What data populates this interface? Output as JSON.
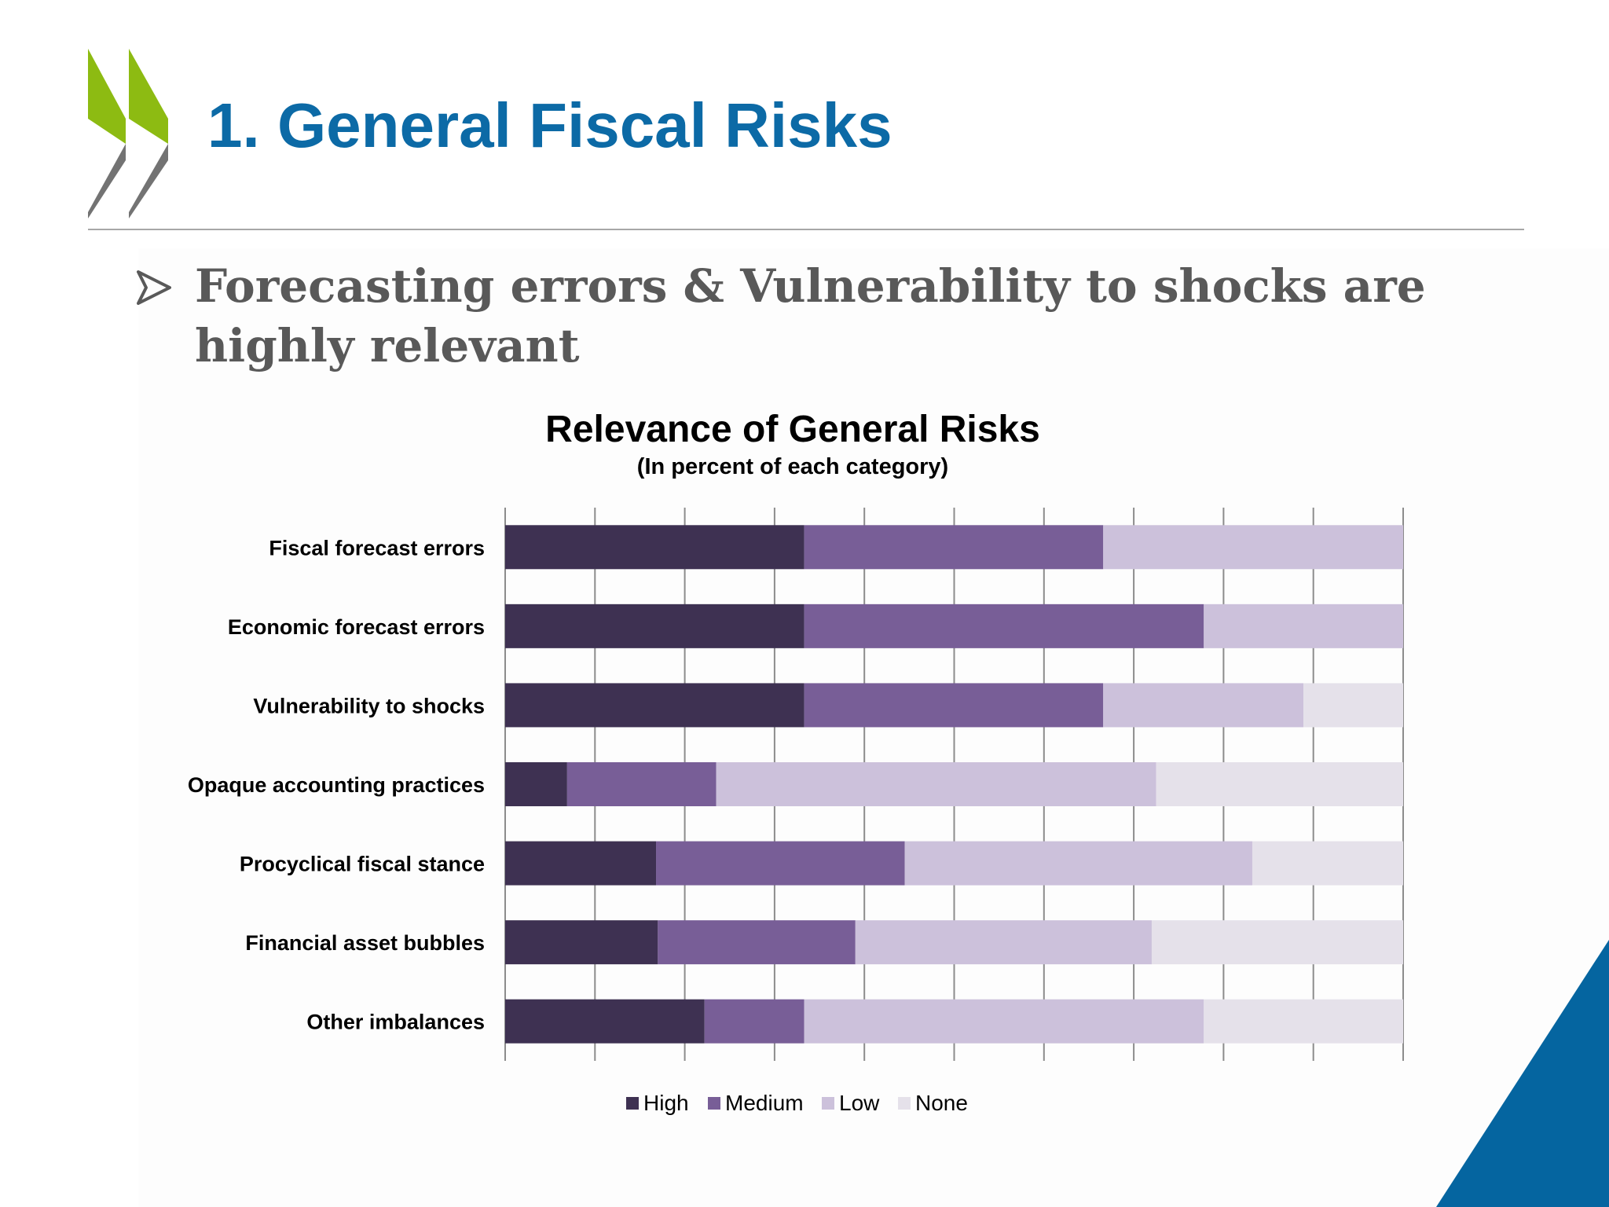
{
  "slide": {
    "title": "1. General Fiscal Risks",
    "bullet": "Forecasting errors & Vulnerability to shocks are highly relevant"
  },
  "colors": {
    "title": "#0c6aa6",
    "logo_green": "#8dbb12",
    "logo_gray": "#737373",
    "corner_blue": "#0565a0"
  },
  "chart_data": {
    "type": "bar",
    "orientation": "horizontal",
    "stacked": true,
    "title": "Relevance of General Risks",
    "subtitle": "(In percent of each category)",
    "categories": [
      "Fiscal forecast errors",
      "Economic forecast errors",
      "Vulnerability to shocks",
      "Opaque accounting practices",
      "Procyclical fiscal stance",
      "Financial asset bubbles",
      "Other imbalances"
    ],
    "series": [
      {
        "name": "High",
        "color": "#3e3152",
        "values": [
          33.3,
          33.3,
          33.3,
          6.9,
          16.8,
          17.0,
          22.2
        ]
      },
      {
        "name": "Medium",
        "color": "#785e97",
        "values": [
          33.3,
          44.5,
          33.3,
          16.6,
          27.7,
          22.0,
          11.1
        ]
      },
      {
        "name": "Low",
        "color": "#ccc1db",
        "values": [
          33.4,
          22.2,
          22.3,
          49.0,
          38.7,
          33.0,
          44.5
        ]
      },
      {
        "name": "None",
        "color": "#e5e1ea",
        "values": [
          0,
          0,
          11.1,
          27.5,
          16.8,
          28.0,
          22.2
        ]
      }
    ],
    "xlim": [
      0,
      100
    ],
    "gridlines": "vertical",
    "legend_position": "bottom"
  }
}
